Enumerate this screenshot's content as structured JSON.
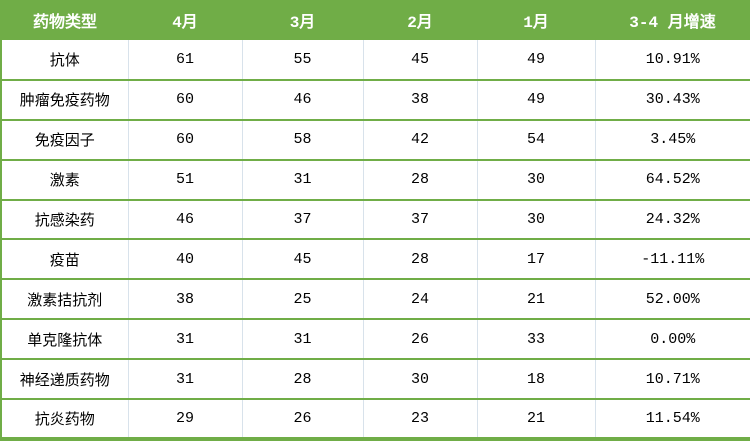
{
  "chart_data": {
    "type": "table",
    "columns": [
      "药物类型",
      "4月",
      "3月",
      "2月",
      "1月",
      "3-4 月增速"
    ],
    "rows": [
      [
        "抗体",
        "61",
        "55",
        "45",
        "49",
        "10.91%"
      ],
      [
        "肿瘤免疫药物",
        "60",
        "46",
        "38",
        "49",
        "30.43%"
      ],
      [
        "免疫因子",
        "60",
        "58",
        "42",
        "54",
        "3.45%"
      ],
      [
        "激素",
        "51",
        "31",
        "28",
        "30",
        "64.52%"
      ],
      [
        "抗感染药",
        "46",
        "37",
        "37",
        "30",
        "24.32%"
      ],
      [
        "疫苗",
        "40",
        "45",
        "28",
        "17",
        "-11.11%"
      ],
      [
        "激素拮抗剂",
        "38",
        "25",
        "24",
        "21",
        "52.00%"
      ],
      [
        "单克隆抗体",
        "31",
        "31",
        "26",
        "33",
        "0.00%"
      ],
      [
        "神经递质药物",
        "31",
        "28",
        "30",
        "18",
        "10.71%"
      ],
      [
        "抗炎药物",
        "29",
        "26",
        "23",
        "21",
        "11.54%"
      ]
    ]
  },
  "colors": {
    "header_bg": "#70AD47",
    "header_text": "#FFFFFF",
    "row_divider": "#70AD47",
    "column_divider": "#D8E2EB",
    "body_text": "#000000",
    "background": "#FFFFFF"
  }
}
